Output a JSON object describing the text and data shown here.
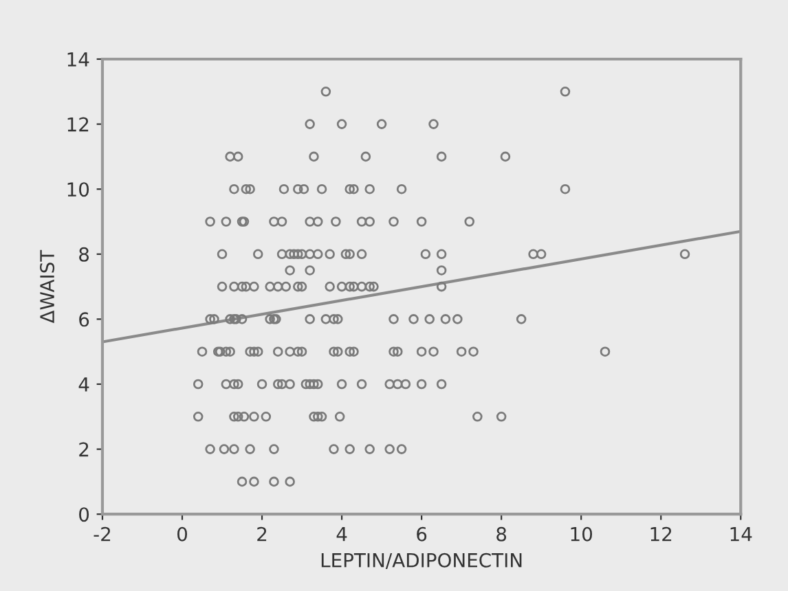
{
  "chart_data": {
    "type": "scatter",
    "xlabel": "LEPTIN/ADIPONECTIN",
    "ylabel": "ΔWAIST",
    "xlim": [
      -2,
      14
    ],
    "ylim": [
      0,
      14
    ],
    "xticks": [
      -2,
      0,
      2,
      4,
      6,
      8,
      10,
      12,
      14
    ],
    "yticks": [
      0,
      2,
      4,
      6,
      8,
      10,
      12,
      14
    ],
    "grid": false,
    "legend": false,
    "marker": "circle",
    "series": [
      {
        "color": "#7a7a7a",
        "x": [
          3.6,
          9.6,
          3.2,
          4.0,
          5.0,
          6.3,
          1.2,
          1.4,
          3.3,
          4.6,
          6.5,
          8.1,
          1.3,
          1.6,
          1.7,
          2.55,
          2.9,
          3.05,
          3.5,
          4.2,
          4.3,
          4.7,
          5.5,
          9.6,
          0.7,
          1.1,
          1.5,
          1.55,
          2.3,
          2.5,
          3.2,
          3.4,
          3.85,
          4.5,
          4.7,
          5.3,
          6.0,
          7.2,
          1.0,
          1.9,
          2.5,
          2.7,
          2.8,
          2.9,
          3.0,
          3.2,
          3.4,
          3.7,
          4.1,
          4.2,
          4.5,
          6.1,
          6.5,
          8.8,
          9.0,
          12.6,
          2.7,
          3.2,
          6.5,
          1.0,
          1.3,
          1.5,
          1.6,
          1.8,
          2.2,
          2.4,
          2.6,
          2.9,
          3.0,
          3.7,
          4.0,
          4.2,
          4.3,
          4.5,
          4.7,
          4.8,
          6.5,
          0.7,
          0.8,
          1.2,
          1.3,
          1.35,
          1.5,
          2.2,
          2.3,
          2.35,
          3.2,
          3.6,
          3.8,
          3.9,
          5.3,
          5.8,
          6.2,
          6.6,
          6.9,
          8.5,
          0.5,
          0.9,
          0.95,
          1.1,
          1.2,
          1.7,
          1.8,
          1.9,
          2.4,
          2.7,
          2.9,
          3.0,
          3.8,
          3.9,
          4.2,
          4.3,
          5.3,
          5.4,
          6.0,
          6.3,
          7.0,
          7.3,
          10.6,
          0.4,
          1.1,
          1.3,
          1.4,
          2.0,
          2.4,
          2.5,
          2.7,
          3.1,
          3.2,
          3.3,
          3.4,
          4.0,
          4.5,
          5.2,
          5.4,
          5.6,
          6.0,
          6.5,
          0.4,
          1.3,
          1.4,
          1.55,
          1.8,
          2.1,
          3.3,
          3.4,
          3.5,
          3.95,
          7.4,
          8.0,
          0.7,
          1.05,
          1.3,
          1.7,
          2.3,
          3.8,
          4.2,
          4.7,
          5.2,
          5.5,
          1.5,
          1.8,
          2.3,
          2.7
        ],
        "values": [
          13,
          13,
          12,
          12,
          12,
          12,
          11,
          11,
          11,
          11,
          11,
          11,
          10,
          10,
          10,
          10,
          10,
          10,
          10,
          10,
          10,
          10,
          10,
          10,
          9,
          9,
          9,
          9,
          9,
          9,
          9,
          9,
          9,
          9,
          9,
          9,
          9,
          9,
          8,
          8,
          8,
          8,
          8,
          8,
          8,
          8,
          8,
          8,
          8,
          8,
          8,
          8,
          8,
          8,
          8,
          8,
          7.5,
          7.5,
          7.5,
          7,
          7,
          7,
          7,
          7,
          7,
          7,
          7,
          7,
          7,
          7,
          7,
          7,
          7,
          7,
          7,
          7,
          7,
          6,
          6,
          6,
          6,
          6,
          6,
          6,
          6,
          6,
          6,
          6,
          6,
          6,
          6,
          6,
          6,
          6,
          6,
          6,
          5,
          5,
          5,
          5,
          5,
          5,
          5,
          5,
          5,
          5,
          5,
          5,
          5,
          5,
          5,
          5,
          5,
          5,
          5,
          5,
          5,
          5,
          5,
          4,
          4,
          4,
          4,
          4,
          4,
          4,
          4,
          4,
          4,
          4,
          4,
          4,
          4,
          4,
          4,
          4,
          4,
          4,
          3,
          3,
          3,
          3,
          3,
          3,
          3,
          3,
          3,
          3,
          3,
          3,
          2,
          2,
          2,
          2,
          2,
          2,
          2,
          2,
          2,
          2,
          1,
          1,
          1,
          1
        ]
      },
      {
        "type": "line",
        "color": "#8a8a8a",
        "marker": "none",
        "line_style": "solid",
        "x": [
          -2,
          14
        ],
        "values": [
          5.3,
          8.7
        ]
      }
    ]
  }
}
